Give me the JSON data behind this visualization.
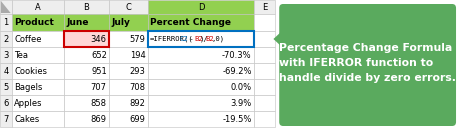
{
  "col_headers": [
    "A",
    "B",
    "C",
    "D",
    "E"
  ],
  "row_numbers": [
    "1",
    "2",
    "3",
    "4",
    "5",
    "6",
    "7"
  ],
  "headers": [
    "Product",
    "June",
    "July",
    "Percent Change"
  ],
  "rows": [
    [
      "Coffee",
      "346",
      "579",
      "formula"
    ],
    [
      "Tea",
      "652",
      "194",
      "-70.3%"
    ],
    [
      "Cookies",
      "951",
      "293",
      "-69.2%"
    ],
    [
      "Bagels",
      "707",
      "708",
      "0.0%"
    ],
    [
      "Apples",
      "858",
      "892",
      "3.9%"
    ],
    [
      "Cakes",
      "869",
      "699",
      "-19.5%"
    ]
  ],
  "callout_text": "Percentage Change Formula\nwith IFERROR function to\nhandle divide by zero errors.",
  "callout_bg": "#5aaa5e",
  "callout_text_color": "#ffffff",
  "header_bg_green": "#92d050",
  "grid_color": "#c0c0c0",
  "cell_bg_default": "#ffffff",
  "row_num_bg": "#eeeeee",
  "col_index_bg": "#eeeeee",
  "b2_fill": "#ffd7d7",
  "b2_border_color": "#cc0000",
  "d2_border_color": "#0070c0",
  "formula_c2_color": "#0070c0",
  "formula_b2_color": "#cc0000",
  "fig_width": 4.74,
  "fig_height": 1.3
}
